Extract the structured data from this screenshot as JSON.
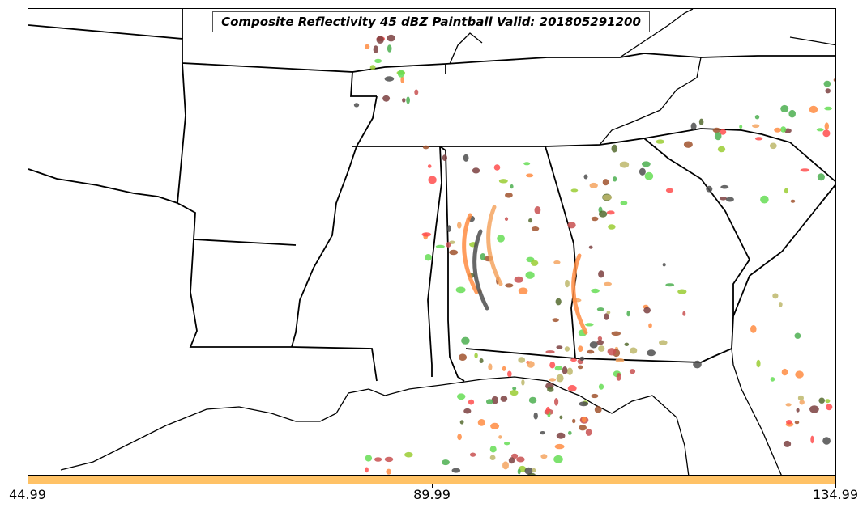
{
  "title": "Composite Reflectivity 45 dBZ Paintball Valid: 201805291200",
  "colorbar": {
    "color": "#ffc266",
    "ticks": [
      "44.99",
      "89.99",
      "134.99"
    ]
  },
  "member_colors": [
    "#4caf50",
    "#ff4d4d",
    "#a0522d",
    "#f4a460",
    "#9acd32",
    "#ff8c42",
    "#7b3f3f",
    "#556b2f",
    "#4d4d4d",
    "#bdb76b",
    "#66dd55",
    "#c85050"
  ]
}
